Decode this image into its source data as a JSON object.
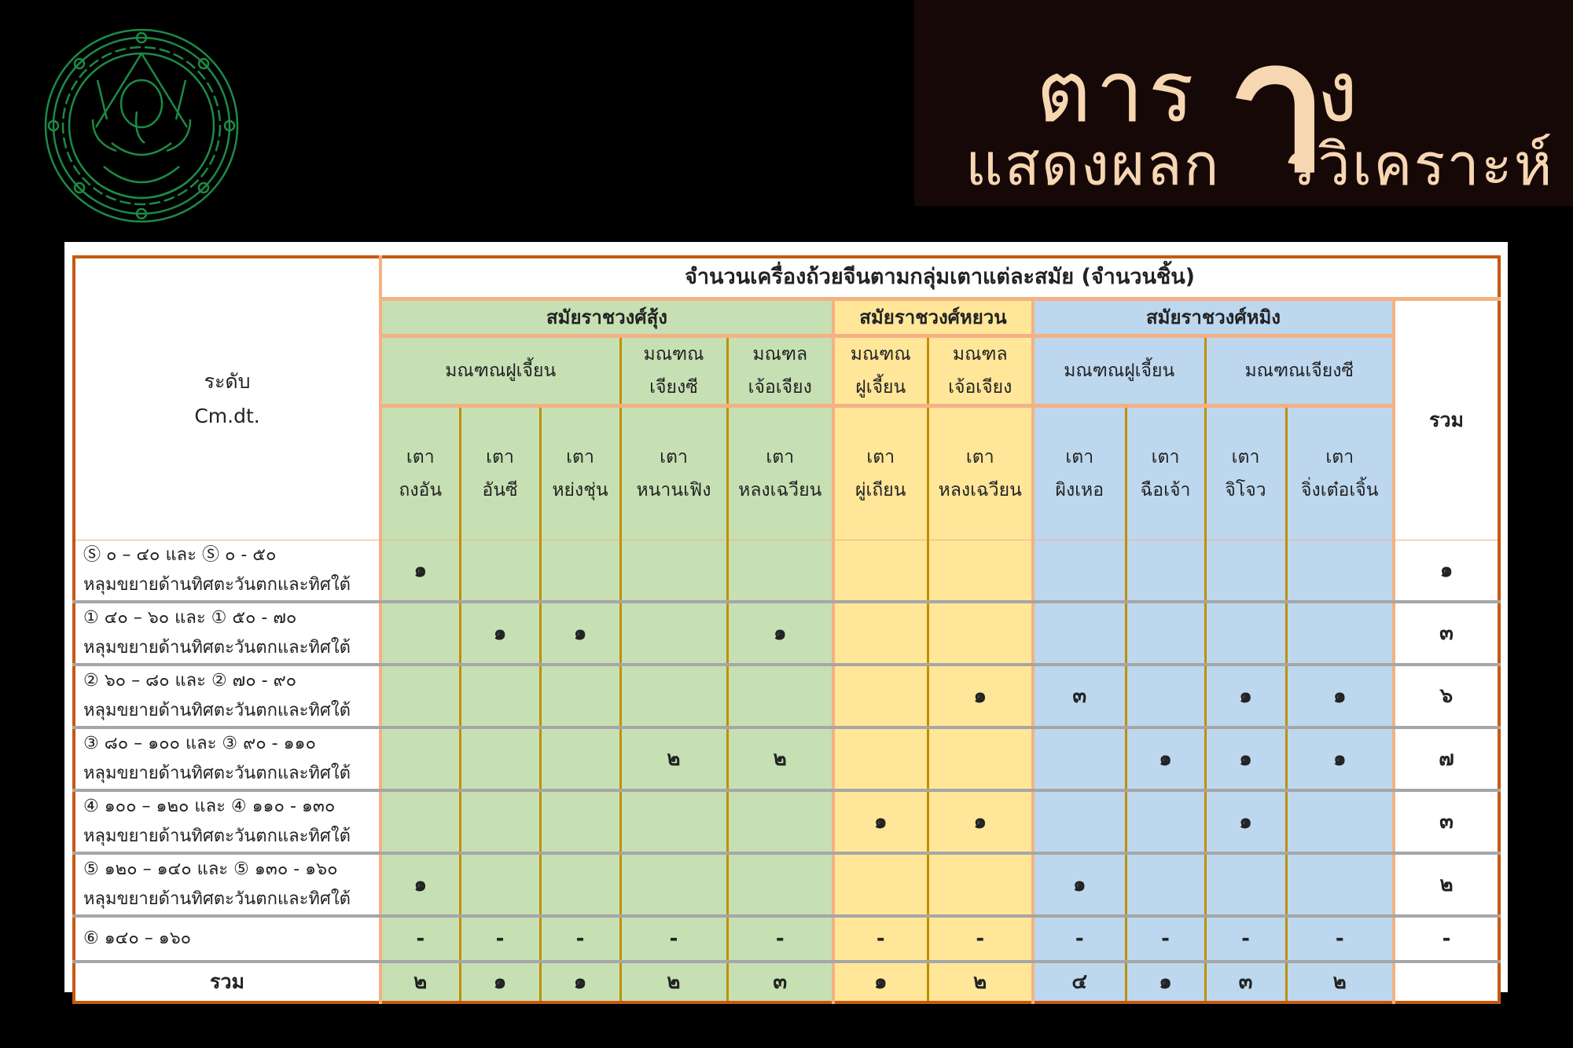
{
  "logo": {
    "name": "ganesha-seal",
    "color": "#1d8a45"
  },
  "title": {
    "line1": "ตาร",
    "big_letter": "า",
    "line1_end": "ง",
    "line2_start": "แสดงผลก",
    "line2_end": "รวิเคราะห์",
    "full": "ตาราง แสดงผลการวิเคราะห์"
  },
  "colors": {
    "song": "#c6e0b4",
    "yuan": "#ffe699",
    "ming": "#bdd7ee",
    "border": "#f4b183",
    "outer_border": "#c55a11",
    "kiln_divider": "#bf9000",
    "row_divider": "#a6a6a6",
    "title_bg": "#170808",
    "title_text": "#f7d7b2"
  },
  "table": {
    "level_header": [
      "ระดับ",
      "Cm.dt."
    ],
    "main_header": "จำนวนเครื่องถ้วยจีนตามกลุ่มเตาแต่ละสมัย (จำนวนชิ้น)",
    "total_header": "รวม",
    "eras": [
      {
        "label": "สมัยราชวงศ์สุ้ง",
        "cls": "g",
        "span": 5
      },
      {
        "label": "สมัยราชวงศ์หยวน",
        "cls": "y",
        "span": 2
      },
      {
        "label": "สมัยราชวงศ์หมิง",
        "cls": "b",
        "span": 4
      }
    ],
    "provinces": [
      {
        "lines": [
          "มณฑณฝูเจี้ยน"
        ],
        "cls": "g",
        "span": 3
      },
      {
        "lines": [
          "มณฑณ",
          "เจียงซี"
        ],
        "cls": "g",
        "span": 1
      },
      {
        "lines": [
          "มณฑล",
          "เจ้อเจียง"
        ],
        "cls": "g",
        "span": 1
      },
      {
        "lines": [
          "มณฑณ",
          "ฝูเจี้ยน"
        ],
        "cls": "y",
        "span": 1
      },
      {
        "lines": [
          "มณฑล",
          "เจ้อเจียง"
        ],
        "cls": "y",
        "span": 1
      },
      {
        "lines": [
          "มณฑณฝูเจี้ยน"
        ],
        "cls": "b",
        "span": 2
      },
      {
        "lines": [
          "มณฑณเจียงซี"
        ],
        "cls": "b",
        "span": 2
      }
    ],
    "kilns": [
      [
        "เตา",
        "ถงอัน"
      ],
      [
        "เตา",
        "อันซี"
      ],
      [
        "เตา",
        "หย่งชุ่น"
      ],
      [
        "เตา",
        "หนานเฟิง"
      ],
      [
        "เตา",
        "หลงเฉวียน"
      ],
      [
        "เตา",
        "ผู่เถียน"
      ],
      [
        "เตา",
        "หลงเฉวียน"
      ],
      [
        "เตา",
        "ผิงเหอ"
      ],
      [
        "เตา",
        "ฉือเจ้า"
      ],
      [
        "เตา",
        "จิโจว"
      ],
      [
        "เตา",
        "จิ่งเต๋อเจิ้น"
      ]
    ],
    "rows": [
      {
        "level": "Ⓢ ๐ – ๔๐ และ Ⓢ ๐ - ๕๐",
        "note": "หลุมขยายด้านทิศตะวันตกและทิศใต้",
        "values": [
          "๑",
          "",
          "",
          "",
          "",
          "",
          "",
          "",
          "",
          "",
          ""
        ],
        "total": "๑"
      },
      {
        "level": "① ๔๐ – ๖๐ และ ① ๕๐ - ๗๐",
        "note": "หลุมขยายด้านทิศตะวันตกและทิศใต้",
        "values": [
          "",
          "๑",
          "๑",
          "",
          "๑",
          "",
          "",
          "",
          "",
          "",
          ""
        ],
        "total": "๓"
      },
      {
        "level": "② ๖๐ – ๘๐ และ ② ๗๐ - ๙๐",
        "note": "หลุมขยายด้านทิศตะวันตกและทิศใต้",
        "values": [
          "",
          "",
          "",
          "",
          "",
          "",
          "๑",
          "๓",
          "",
          "๑",
          "๑"
        ],
        "total": "๖"
      },
      {
        "level": "③ ๘๐ – ๑๐๐ และ ③ ๙๐ - ๑๑๐",
        "note": "หลุมขยายด้านทิศตะวันตกและทิศใต้",
        "values": [
          "",
          "",
          "",
          "๒",
          "๒",
          "",
          "",
          "",
          "๑",
          "๑",
          "๑"
        ],
        "total": "๗"
      },
      {
        "level": "④ ๑๐๐ – ๑๒๐ และ ④ ๑๑๐ - ๑๓๐",
        "note": "หลุมขยายด้านทิศตะวันตกและทิศใต้",
        "values": [
          "",
          "",
          "",
          "",
          "",
          "๑",
          "๑",
          "",
          "",
          "๑",
          ""
        ],
        "total": "๓"
      },
      {
        "level": "⑤ ๑๒๐ – ๑๔๐ และ ⑤ ๑๓๐ - ๑๖๐",
        "note": "หลุมขยายด้านทิศตะวันตกและทิศใต้",
        "values": [
          "๑",
          "",
          "",
          "",
          "",
          "",
          "",
          "๑",
          "",
          "",
          ""
        ],
        "total": "๒"
      },
      {
        "level": "⑥ ๑๔๐ – ๑๖๐",
        "note": "",
        "values": [
          "-",
          "-",
          "-",
          "-",
          "-",
          "-",
          "-",
          "-",
          "-",
          "-",
          "-"
        ],
        "total": "-"
      }
    ],
    "total_row": {
      "label": "รวม",
      "values": [
        "๒",
        "๑",
        "๑",
        "๒",
        "๓",
        "๑",
        "๒",
        "๔",
        "๑",
        "๓",
        "๒"
      ],
      "total": ""
    }
  }
}
